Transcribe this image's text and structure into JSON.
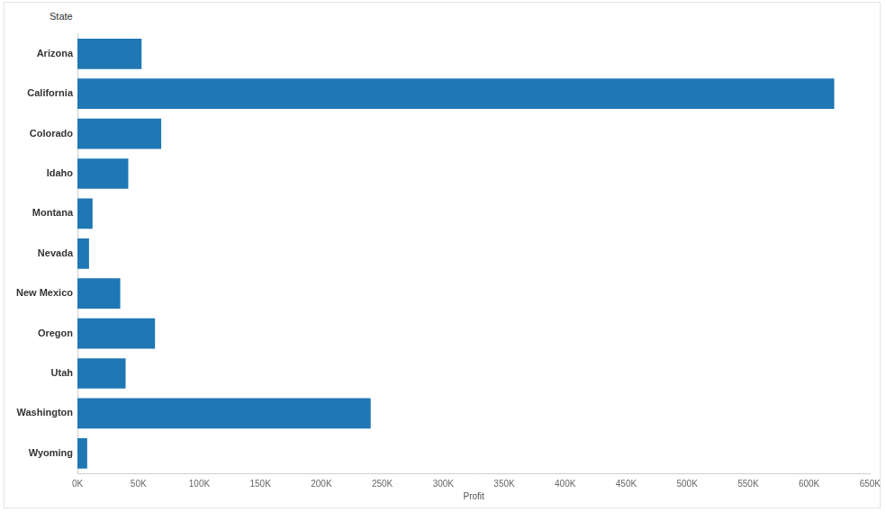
{
  "chart_data": {
    "type": "bar",
    "orientation": "horizontal",
    "x_label": "Profit",
    "y_label": "State",
    "categories": [
      "Arizona",
      "California",
      "Colorado",
      "Idaho",
      "Montana",
      "Nevada",
      "New Mexico",
      "Oregon",
      "Utah",
      "Washington",
      "Wyoming"
    ],
    "values": [
      52600,
      620600,
      68700,
      41700,
      12400,
      9500,
      35100,
      63600,
      39500,
      240500,
      8000
    ],
    "color": "#1f77b4",
    "xlim": [
      0,
      650000
    ],
    "xticks": [
      {
        "value": 0,
        "label": "0K"
      },
      {
        "value": 50000,
        "label": "50K"
      },
      {
        "value": 100000,
        "label": "100K"
      },
      {
        "value": 150000,
        "label": "150K"
      },
      {
        "value": 200000,
        "label": "200K"
      },
      {
        "value": 250000,
        "label": "250K"
      },
      {
        "value": 300000,
        "label": "300K"
      },
      {
        "value": 350000,
        "label": "350K"
      },
      {
        "value": 400000,
        "label": "400K"
      },
      {
        "value": 450000,
        "label": "450K"
      },
      {
        "value": 500000,
        "label": "500K"
      },
      {
        "value": 550000,
        "label": "550K"
      },
      {
        "value": 600000,
        "label": "600K"
      },
      {
        "value": 650000,
        "label": "650K"
      }
    ],
    "grid": false
  }
}
